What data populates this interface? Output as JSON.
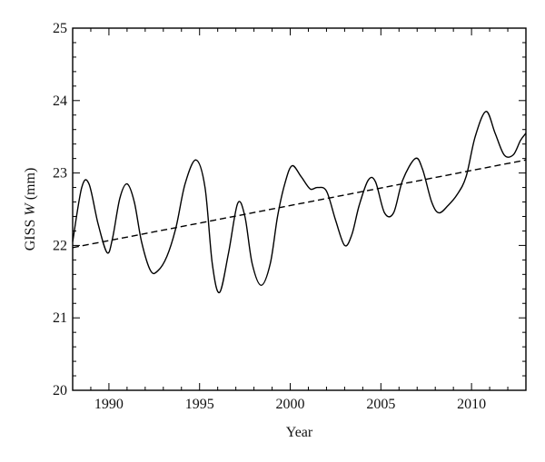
{
  "chart_data": {
    "type": "line",
    "xlabel": "Year",
    "ylabel_prefix": "GISS ",
    "ylabel_var": "W",
    "ylabel_suffix": " (mm)",
    "xlim": [
      1988,
      2013
    ],
    "ylim": [
      20,
      25
    ],
    "x_ticks": [
      1990,
      1995,
      2000,
      2005,
      2010
    ],
    "y_ticks": [
      20,
      21,
      22,
      23,
      24,
      25
    ],
    "x_minor_step": 1,
    "y_minor_step": 0.2,
    "series": [
      {
        "style": "solid",
        "x": [
          1988.0,
          1988.5,
          1988.9,
          1989.4,
          1989.9,
          1990.2,
          1990.6,
          1991.0,
          1991.4,
          1991.8,
          1992.3,
          1992.7,
          1993.2,
          1993.7,
          1994.2,
          1994.8,
          1995.3,
          1995.7,
          1996.1,
          1996.6,
          1997.1,
          1997.5,
          1997.9,
          1998.4,
          1998.9,
          1999.3,
          1999.7,
          2000.1,
          2000.6,
          2001.1,
          2001.5,
          2002.0,
          2002.5,
          2003.0,
          2003.4,
          2003.8,
          2004.3,
          2004.7,
          2005.2,
          2005.7,
          2006.2,
          2006.9,
          2007.3,
          2007.8,
          2008.2,
          2008.7,
          2009.2,
          2009.7,
          2010.2,
          2010.8,
          2011.3,
          2011.8,
          2012.3,
          2012.7,
          2013.0
        ],
        "y": [
          22.05,
          22.8,
          22.85,
          22.3,
          21.9,
          22.1,
          22.65,
          22.85,
          22.6,
          22.05,
          21.65,
          21.65,
          21.85,
          22.25,
          22.85,
          23.18,
          22.8,
          21.75,
          21.35,
          21.9,
          22.58,
          22.4,
          21.75,
          21.45,
          21.75,
          22.4,
          22.85,
          23.1,
          22.95,
          22.78,
          22.8,
          22.75,
          22.35,
          22.0,
          22.15,
          22.55,
          22.9,
          22.88,
          22.45,
          22.45,
          22.9,
          23.2,
          23.05,
          22.6,
          22.45,
          22.55,
          22.7,
          22.95,
          23.5,
          23.85,
          23.55,
          23.25,
          23.25,
          23.45,
          23.55
        ]
      },
      {
        "style": "dashed",
        "x": [
          1988,
          2013
        ],
        "y": [
          21.97,
          23.18
        ]
      }
    ]
  }
}
